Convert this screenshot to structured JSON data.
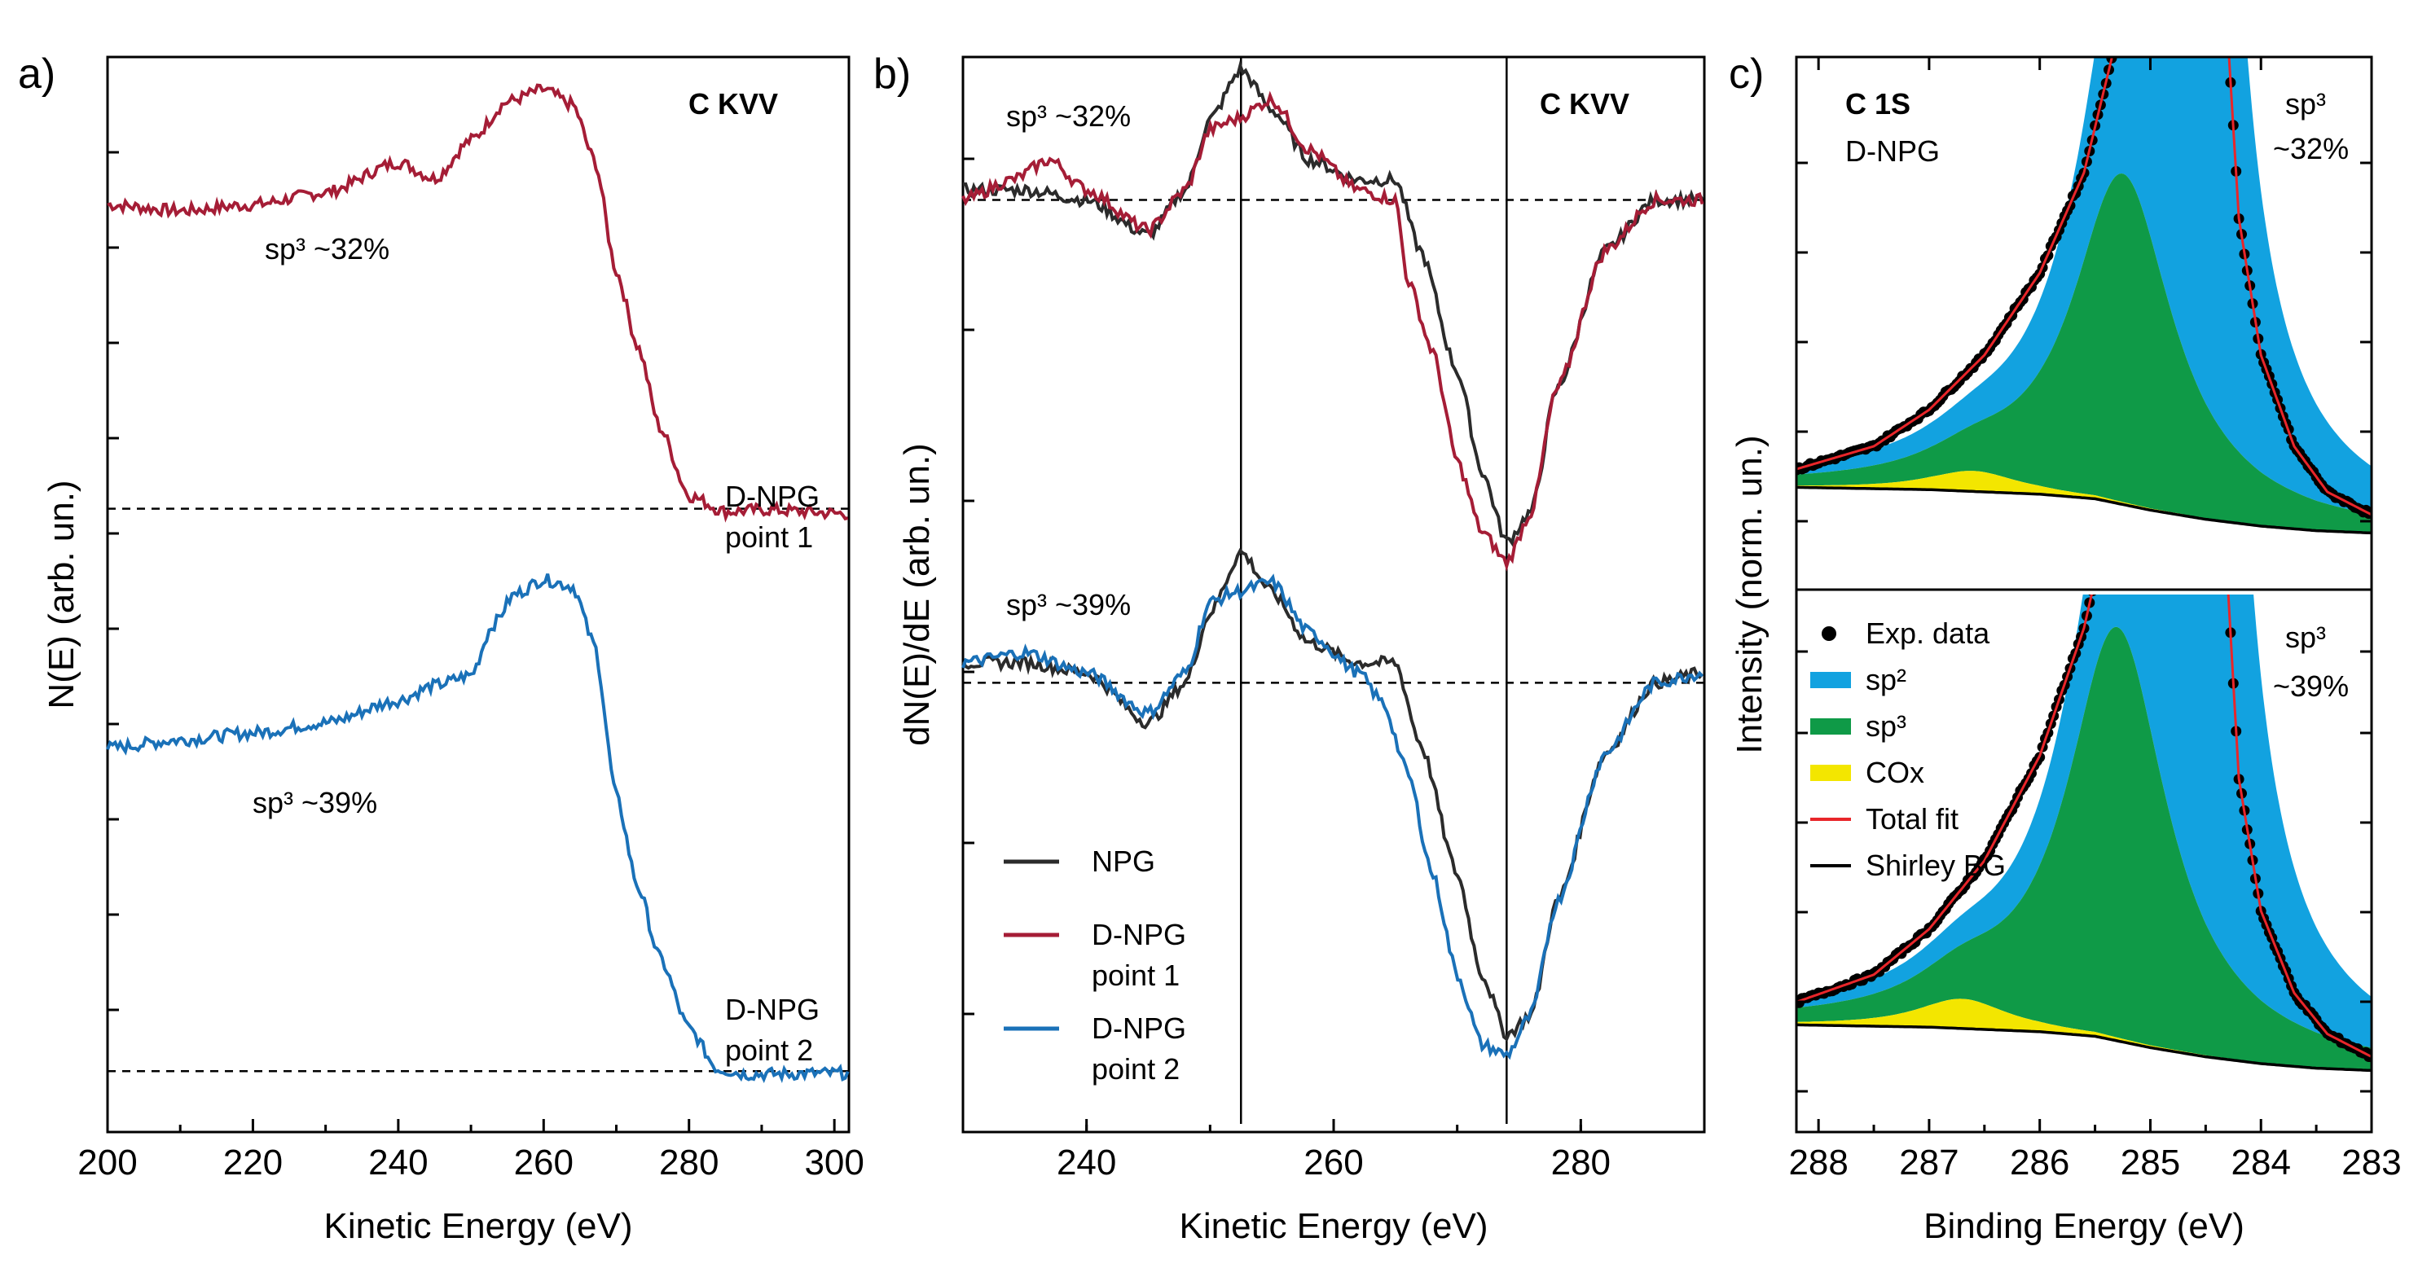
{
  "colors": {
    "npg": "#2b2b2b",
    "dnpg1": "#a51d36",
    "dnpg2": "#1a71b8",
    "sp2": "#12a2e0",
    "sp3": "#0f9a47",
    "cox": "#f3e600",
    "total_fit": "#e8262a",
    "shirley": "#000000"
  },
  "chart_data": [
    {
      "panel": "a)",
      "type": "line",
      "title": "C KVV",
      "xlabel": "Kinetic Energy (eV)",
      "ylabel": "N(E) (arb. un.)",
      "xlim": [
        200,
        302
      ],
      "ylim": [
        0,
        1
      ],
      "xticks": [
        "200",
        "220",
        "240",
        "260",
        "280",
        "300"
      ],
      "annotations": {
        "sp3_1": "sp³ ~32%",
        "sp3_2": "sp³ ~39%",
        "lab1_a": "D-NPG",
        "lab1_b": "point 1",
        "lab2_a": "D-NPG",
        "lab2_b": "point 2"
      },
      "series": [
        {
          "name": "D-NPG point 1",
          "color": "dnpg1",
          "baseline": 0.585,
          "x": [
            200,
            210,
            220,
            230,
            240,
            245,
            250,
            255,
            260,
            264,
            267,
            270,
            273,
            276,
            280,
            285,
            290,
            302
          ],
          "y": [
            0.886,
            0.88,
            0.886,
            0.898,
            0.928,
            0.912,
            0.95,
            0.988,
            1.0,
            0.985,
            0.93,
            0.82,
            0.745,
            0.665,
            0.598,
            0.582,
            0.584,
            0.58
          ]
        },
        {
          "name": "D-NPG point 2",
          "color": "dnpg2",
          "baseline": 0.028,
          "x": [
            200,
            210,
            220,
            230,
            240,
            245,
            250,
            253,
            256,
            260,
            264,
            267,
            270,
            273,
            276,
            280,
            284,
            288,
            302
          ],
          "y": [
            0.348,
            0.356,
            0.363,
            0.373,
            0.395,
            0.41,
            0.42,
            0.47,
            0.5,
            0.515,
            0.508,
            0.45,
            0.3,
            0.21,
            0.14,
            0.07,
            0.03,
            0.025,
            0.026
          ]
        }
      ]
    },
    {
      "panel": "b)",
      "type": "line",
      "title": "C KVV",
      "xlabel": "Kinetic Energy (eV)",
      "ylabel": "dN(E)/dE (arb. un.)",
      "xlim": [
        230,
        290
      ],
      "ylim": [
        0,
        1
      ],
      "xticks": [
        "240",
        "260",
        "280"
      ],
      "vlines": [
        252.5,
        274
      ],
      "annotations": {
        "sp3_1": "sp³ ~32%",
        "sp3_2": "sp³ ~39%"
      },
      "legend": [
        {
          "label": "NPG",
          "color": "npg"
        },
        {
          "label": "D-NPG",
          "label2": "point 1",
          "color": "dnpg1"
        },
        {
          "label": "D-NPG",
          "label2": "point 2",
          "color": "dnpg2"
        }
      ],
      "series": [
        {
          "name": "NPG (top)",
          "color": "npg",
          "baseline": 0.87,
          "x": [
            230,
            235,
            240,
            245,
            248,
            250,
            252.5,
            255,
            258,
            262,
            265,
            267,
            270,
            272,
            274,
            276,
            278,
            282,
            286,
            290
          ],
          "y": [
            0.88,
            0.88,
            0.87,
            0.835,
            0.88,
            0.95,
            1.0,
            0.96,
            0.91,
            0.89,
            0.89,
            0.82,
            0.7,
            0.6,
            0.53,
            0.56,
            0.68,
            0.82,
            0.87,
            0.87
          ]
        },
        {
          "name": "D-NPG point 1",
          "color": "dnpg1",
          "baseline": 0.87,
          "x": [
            230,
            234,
            237,
            240,
            245,
            248,
            250,
            252,
            255,
            258,
            262,
            265,
            266,
            268,
            270,
            272,
            274,
            276,
            278,
            282,
            286,
            290
          ],
          "y": [
            0.87,
            0.89,
            0.91,
            0.88,
            0.84,
            0.88,
            0.94,
            0.95,
            0.97,
            0.92,
            0.88,
            0.87,
            0.79,
            0.72,
            0.61,
            0.54,
            0.51,
            0.56,
            0.68,
            0.82,
            0.87,
            0.87
          ]
        },
        {
          "name": "NPG (bottom)",
          "color": "npg",
          "baseline": 0.39,
          "x": [
            230,
            235,
            240,
            245,
            248,
            250,
            252.5,
            255,
            258,
            262,
            265,
            267,
            270,
            272,
            274,
            276,
            278,
            282,
            286,
            290
          ],
          "y": [
            0.41,
            0.41,
            0.4,
            0.35,
            0.39,
            0.46,
            0.52,
            0.48,
            0.43,
            0.41,
            0.41,
            0.33,
            0.2,
            0.1,
            0.04,
            0.06,
            0.17,
            0.32,
            0.39,
            0.4
          ]
        },
        {
          "name": "D-NPG point 2",
          "color": "dnpg2",
          "baseline": 0.39,
          "x": [
            230,
            235,
            240,
            245,
            248,
            250,
            252,
            255,
            258,
            262,
            264,
            266,
            268,
            270,
            272,
            274,
            276,
            278,
            282,
            286,
            290
          ],
          "y": [
            0.41,
            0.42,
            0.4,
            0.36,
            0.4,
            0.47,
            0.48,
            0.49,
            0.44,
            0.4,
            0.37,
            0.3,
            0.2,
            0.1,
            0.03,
            0.02,
            0.06,
            0.17,
            0.32,
            0.39,
            0.4
          ]
        }
      ]
    },
    {
      "panel": "c)",
      "type": "area",
      "title": "C 1S",
      "subtitle": "D-NPG",
      "xlabel": "Binding Energy (eV)",
      "ylabel": "Intensity (norm. un.)",
      "xlim": [
        288.2,
        283
      ],
      "reversed_x": true,
      "xticks": [
        "288",
        "287",
        "286",
        "285",
        "284",
        "283"
      ],
      "legend": [
        {
          "label": "Exp. data",
          "kind": "dot",
          "color": "shirley"
        },
        {
          "label": "sp²",
          "kind": "bar",
          "color": "sp2"
        },
        {
          "label": "sp³",
          "kind": "bar",
          "color": "sp3"
        },
        {
          "label": "COx",
          "kind": "bar",
          "color": "cox"
        },
        {
          "label": "Total fit",
          "kind": "line",
          "color": "total_fit"
        },
        {
          "label": "Shirley BG",
          "kind": "line",
          "color": "shirley"
        }
      ],
      "subpanels": [
        {
          "name": "top",
          "sp3_label": "sp³",
          "sp3_value": "~32%",
          "shirley": {
            "x": [
              288.2,
              287,
              286,
              285.5,
              285,
              284.5,
              284,
              283.5,
              283
            ],
            "y": [
              0.11,
              0.105,
              0.095,
              0.085,
              0.06,
              0.04,
              0.025,
              0.015,
              0.01
            ]
          },
          "sp3_peak": {
            "center": 285.25,
            "height": 0.72,
            "width": 0.55
          },
          "cox_peak": {
            "center": 286.6,
            "height": 0.045,
            "width": 0.5
          },
          "sp2_peak": {
            "center": 284.65,
            "height": 6.0,
            "width": 0.22
          },
          "total": {
            "x": [
              288.2,
              287.5,
              287,
              286.5,
              286,
              285.6,
              285.3,
              285.1,
              284.9,
              284.7,
              284.4,
              284.2,
              284,
              283.7,
              283.4,
              283
            ],
            "y": [
              0.15,
              0.2,
              0.28,
              0.4,
              0.58,
              0.8,
              1.1,
              1.5,
              2.2,
              3.0,
              1.5,
              0.7,
              0.4,
              0.2,
              0.1,
              0.05
            ]
          }
        },
        {
          "name": "bottom",
          "sp3_label": "sp³",
          "sp3_value": "~39%",
          "shirley": {
            "x": [
              288.2,
              287,
              286,
              285.5,
              285,
              284.5,
              284,
              283.5,
              283
            ],
            "y": [
              0.11,
              0.105,
              0.095,
              0.085,
              0.06,
              0.04,
              0.025,
              0.015,
              0.01
            ]
          },
          "sp3_peak": {
            "center": 285.3,
            "height": 0.9,
            "width": 0.55
          },
          "cox_peak": {
            "center": 286.7,
            "height": 0.065,
            "width": 0.5
          },
          "sp2_peak": {
            "center": 284.6,
            "height": 6.0,
            "width": 0.22
          },
          "total": {
            "x": [
              288.2,
              287.5,
              287,
              286.5,
              286,
              285.6,
              285.3,
              285.1,
              284.9,
              284.7,
              284.4,
              284.2,
              284,
              283.7,
              283.4,
              283
            ],
            "y": [
              0.16,
              0.22,
              0.32,
              0.47,
              0.7,
              0.98,
              1.3,
              1.7,
              2.4,
              3.2,
              1.5,
              0.65,
              0.36,
              0.18,
              0.09,
              0.04
            ]
          }
        }
      ]
    }
  ]
}
